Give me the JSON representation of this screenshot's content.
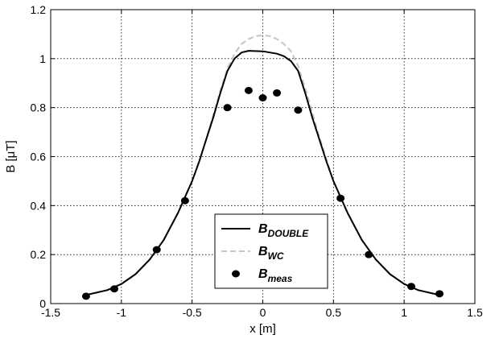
{
  "chart_data": {
    "type": "line",
    "xlabel": "x [m]",
    "ylabel": "B [μT]",
    "xlim": [
      -1.5,
      1.5
    ],
    "ylim": [
      0,
      1.2
    ],
    "xticks": [
      -1.5,
      -1,
      -0.5,
      0,
      0.5,
      1,
      1.5
    ],
    "yticks": [
      0,
      0.2,
      0.4,
      0.6,
      0.8,
      1,
      1.2
    ],
    "xtick_labels": [
      "-1.5",
      "-1",
      "-0.5",
      "0",
      "0.5",
      "1",
      "1.5"
    ],
    "ytick_labels": [
      "0",
      "0.2",
      "0.4",
      "0.6",
      "0.8",
      "1",
      "1.2"
    ],
    "grid": true,
    "legend_position": "bottom-center",
    "series": [
      {
        "name": "B",
        "subscript": "DOUBLE",
        "kind": "line",
        "color": "#000000",
        "dash": "solid",
        "x": [
          -1.25,
          -1.1,
          -1.0,
          -0.9,
          -0.8,
          -0.7,
          -0.6,
          -0.5,
          -0.45,
          -0.4,
          -0.35,
          -0.3,
          -0.25,
          -0.2,
          -0.15,
          -0.1,
          0,
          0.1,
          0.15,
          0.2,
          0.25,
          0.3,
          0.35,
          0.4,
          0.45,
          0.5,
          0.6,
          0.7,
          0.8,
          0.9,
          1.0,
          1.1,
          1.25
        ],
        "y": [
          0.035,
          0.055,
          0.08,
          0.12,
          0.18,
          0.26,
          0.37,
          0.5,
          0.58,
          0.67,
          0.76,
          0.86,
          0.95,
          1.0,
          1.025,
          1.032,
          1.03,
          1.02,
          1.01,
          0.99,
          0.95,
          0.86,
          0.76,
          0.67,
          0.58,
          0.5,
          0.37,
          0.26,
          0.18,
          0.12,
          0.08,
          0.055,
          0.035
        ]
      },
      {
        "name": "B",
        "subscript": "WC",
        "kind": "line",
        "color": "#c8c8c8",
        "dash": "dashed",
        "x": [
          -1.25,
          -1.1,
          -1.0,
          -0.9,
          -0.8,
          -0.7,
          -0.6,
          -0.5,
          -0.45,
          -0.4,
          -0.35,
          -0.3,
          -0.25,
          -0.2,
          -0.15,
          -0.1,
          -0.05,
          0,
          0.05,
          0.1,
          0.15,
          0.2,
          0.25,
          0.3,
          0.35,
          0.4,
          0.45,
          0.5,
          0.6,
          0.7,
          0.8,
          0.9,
          1.0,
          1.1,
          1.25
        ],
        "y": [
          0.035,
          0.055,
          0.08,
          0.12,
          0.18,
          0.26,
          0.37,
          0.5,
          0.58,
          0.67,
          0.77,
          0.87,
          0.96,
          1.02,
          1.06,
          1.08,
          1.092,
          1.095,
          1.092,
          1.08,
          1.06,
          1.03,
          0.97,
          0.88,
          0.78,
          0.68,
          0.59,
          0.5,
          0.37,
          0.26,
          0.18,
          0.12,
          0.08,
          0.055,
          0.035
        ]
      },
      {
        "name": "B",
        "subscript": "meas",
        "kind": "scatter",
        "color": "#000000",
        "x": [
          -1.25,
          -1.05,
          -0.75,
          -0.55,
          -0.25,
          -0.1,
          0,
          0.1,
          0.25,
          0.55,
          0.75,
          1.05,
          1.25
        ],
        "y": [
          0.03,
          0.06,
          0.22,
          0.42,
          0.8,
          0.87,
          0.84,
          0.86,
          0.79,
          0.43,
          0.2,
          0.07,
          0.04
        ]
      }
    ]
  }
}
